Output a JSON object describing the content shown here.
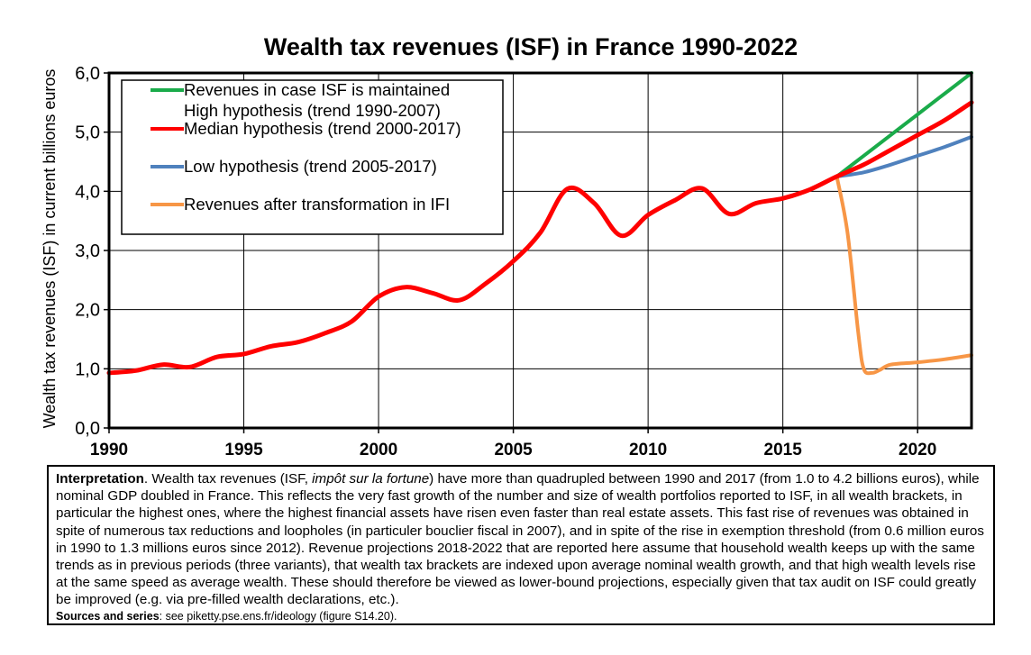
{
  "chart_data": {
    "type": "line",
    "title": "Wealth tax revenues (ISF) in France 1990-2022",
    "ylabel": "Wealth tax revenues (ISF) in current billions euros",
    "xlabel": "",
    "xlim": [
      1990,
      2022
    ],
    "ylim": [
      0,
      6
    ],
    "x_ticks": [
      "1990",
      "1995",
      "2000",
      "2005",
      "2010",
      "2015",
      "2020"
    ],
    "y_ticks": [
      "0,0",
      "1,0",
      "2,0",
      "3,0",
      "4,0",
      "5,0",
      "6,0"
    ],
    "grid": true,
    "legend_position": "top-left",
    "legend": [
      "Revenues in case ISF is maintained",
      "High hypothesis (trend 1990-2007)",
      "Median hypothesis (trend 2000-2017)",
      "Low hypothesis (trend 2005-2017)",
      "Revenues after transformation in IFI"
    ],
    "series": [
      {
        "name": "High hypothesis (trend 1990-2007)",
        "color": "#1aab4a",
        "x": [
          2017,
          2018,
          2019,
          2020,
          2021,
          2022
        ],
        "y": [
          4.25,
          4.6,
          4.95,
          5.3,
          5.65,
          6.0
        ]
      },
      {
        "name": "Median hypothesis (trend 2000-2017)",
        "color": "#ff0000",
        "x": [
          1990,
          1991,
          1992,
          1993,
          1994,
          1995,
          1996,
          1997,
          1998,
          1999,
          2000,
          2001,
          2002,
          2003,
          2004,
          2005,
          2006,
          2007,
          2008,
          2009,
          2010,
          2011,
          2012,
          2013,
          2014,
          2015,
          2016,
          2017,
          2018,
          2019,
          2020,
          2021,
          2022
        ],
        "y": [
          0.93,
          0.97,
          1.07,
          1.03,
          1.2,
          1.25,
          1.38,
          1.45,
          1.6,
          1.8,
          2.22,
          2.38,
          2.28,
          2.16,
          2.45,
          2.82,
          3.3,
          4.04,
          3.8,
          3.25,
          3.6,
          3.85,
          4.05,
          3.62,
          3.8,
          3.88,
          4.03,
          4.25,
          4.45,
          4.7,
          4.95,
          5.2,
          5.5
        ]
      },
      {
        "name": "Low hypothesis (trend 2005-2017)",
        "color": "#4f81bd",
        "x": [
          2017,
          2018,
          2019,
          2020,
          2021,
          2022
        ],
        "y": [
          4.25,
          4.32,
          4.45,
          4.6,
          4.75,
          4.92
        ]
      },
      {
        "name": "Revenues after transformation in IFI",
        "color": "#f79646",
        "x": [
          2017,
          2017.4,
          2017.8,
          2018,
          2018.3,
          2018.6,
          2019,
          2020,
          2021,
          2022
        ],
        "y": [
          4.25,
          3.3,
          1.6,
          1.0,
          0.93,
          0.98,
          1.07,
          1.11,
          1.16,
          1.23
        ]
      }
    ]
  },
  "note": {
    "title": "Interpretation",
    "text_1": ". Wealth tax revenues (ISF, ",
    "text_italic": "impôt sur la fortune",
    "text_2": ") have more than quadrupled between 1990 and 2017 (from 1.0 to 4.2 billions euros), while nominal GDP doubled in France. This reflects the very fast growth of the number and size of wealth portfolios reported to ISF, in all wealth brackets, in particular the highest ones, where the highest financial assets have risen even faster than real estate assets. This fast rise of revenues was obtained in spite of numerous tax reductions and loopholes (in particuler bouclier fiscal in 2007), and in spite of the rise in exemption threshold (from 0.6 million euros in 1990 to 1.3 millions euros since 2012). Revenue projections 2018-2022 that are reported here assume that household wealth keeps up with the same trends as in previous periods (three variants), that wealth tax brackets are indexed upon average nominal wealth growth, and that high wealth levels rise at the same speed as average wealth. These should therefore be viewed as lower-bound projections, especially given that tax audit on ISF could greatly be improved (e.g. via pre-filled wealth declarations, etc.).",
    "sources_label": "Sources and series",
    "sources_text": ": see piketty.pse.ens.fr/ideology (figure S14.20)."
  }
}
